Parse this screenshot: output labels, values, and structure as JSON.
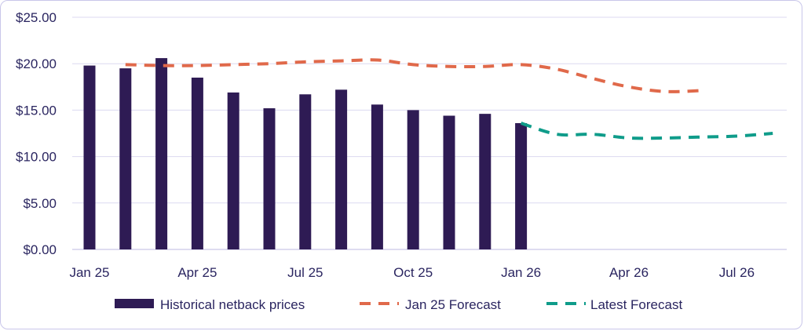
{
  "chart_data": {
    "type": "bar",
    "title": "",
    "xlabel": "",
    "ylabel": "",
    "ylim": [
      0,
      25
    ],
    "yticks": [
      0,
      5,
      10,
      15,
      20,
      25
    ],
    "ytick_labels": [
      "$0.00",
      "$5.00",
      "$10.00",
      "$15.00",
      "$20.00",
      "$25.00"
    ],
    "x_months": [
      "Jan 25",
      "Feb 25",
      "Mar 25",
      "Apr 25",
      "May 25",
      "Jun 25",
      "Jul 25",
      "Aug 25",
      "Sep 25",
      "Oct 25",
      "Nov 25",
      "Dec 25",
      "Jan 26",
      "Feb 26",
      "Mar 26",
      "Apr 26",
      "May 26",
      "Jun 26",
      "Jul 26",
      "Aug 26"
    ],
    "xtick_labels": [
      {
        "month_index": 0,
        "label": "Jan 25"
      },
      {
        "month_index": 3,
        "label": "Apr 25"
      },
      {
        "month_index": 6,
        "label": "Jul 25"
      },
      {
        "month_index": 9,
        "label": "Oct 25"
      },
      {
        "month_index": 12,
        "label": "Jan 26"
      },
      {
        "month_index": 15,
        "label": "Apr 26"
      },
      {
        "month_index": 18,
        "label": "Jul 26"
      }
    ],
    "grid": true,
    "series": [
      {
        "name": "Historical netback prices",
        "kind": "bar",
        "color": "#2e1b54",
        "month_indices": [
          0,
          1,
          2,
          3,
          4,
          5,
          6,
          7,
          8,
          9,
          10,
          11,
          12
        ],
        "values": [
          19.8,
          19.5,
          20.6,
          18.5,
          16.9,
          15.2,
          16.7,
          17.2,
          15.6,
          15.0,
          14.4,
          14.6,
          13.6
        ]
      },
      {
        "name": "Jan 25 Forecast",
        "kind": "dashed-line",
        "color": "#e0694a",
        "month_indices": [
          1,
          2,
          3,
          4,
          5,
          6,
          7,
          8,
          9,
          10,
          11,
          12,
          13,
          14,
          15,
          16,
          17
        ],
        "values": [
          19.9,
          19.8,
          19.8,
          19.9,
          20.0,
          20.2,
          20.3,
          20.4,
          19.9,
          19.7,
          19.7,
          19.9,
          19.4,
          18.4,
          17.5,
          17.0,
          17.1
        ]
      },
      {
        "name": "Latest Forecast",
        "kind": "dashed-line",
        "color": "#0f9c8a",
        "month_indices": [
          12,
          13,
          14,
          15,
          16,
          17,
          18,
          19
        ],
        "values": [
          13.6,
          12.4,
          12.4,
          12.0,
          12.0,
          12.1,
          12.2,
          12.5
        ]
      }
    ],
    "legend_position": "bottom"
  }
}
